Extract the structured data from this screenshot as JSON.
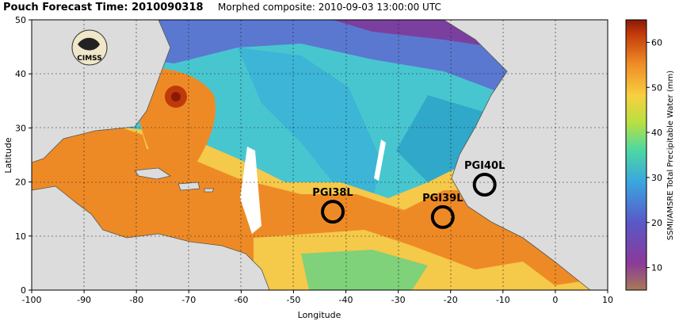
{
  "header": {
    "title": "Pouch Forecast Time: 2010090318",
    "subtitle": "Morphed composite: 2010-09-03 13:00:00 UTC"
  },
  "logo": {
    "text": "CIMSS"
  },
  "map": {
    "xlabel": "Longitude",
    "ylabel": "Latitude",
    "xlim": [
      -100,
      10
    ],
    "ylim": [
      0,
      50
    ],
    "x_ticks": [
      "-100",
      "-90",
      "-80",
      "-70",
      "-60",
      "-50",
      "-40",
      "-30",
      "-20",
      "-10",
      "0",
      "10"
    ],
    "y_ticks": [
      "0",
      "10",
      "20",
      "30",
      "40",
      "50"
    ],
    "grid": true
  },
  "colorbar": {
    "label": "SSMI/AMSRE Total Precipitable Water (mm)",
    "ticks": [
      "10",
      "20",
      "30",
      "40",
      "50",
      "60"
    ],
    "range": [
      5,
      65
    ]
  },
  "pouches": [
    {
      "label": "PGI38L",
      "lon": -42.5,
      "lat": 14.5
    },
    {
      "label": "PGI39L",
      "lon": -21.5,
      "lat": 13.5
    },
    {
      "label": "PGI40L",
      "lon": -13.5,
      "lat": 19.5
    }
  ],
  "colors": {
    "land": "#dcdcdc",
    "very_wet": "#c0390a",
    "wet": "#ee8a25",
    "moist": "#f5c94a",
    "mid": "#7fd17a",
    "dry": "#3ab8d8",
    "very_dry": "#5a6fd0",
    "driest": "#7b3fa0"
  }
}
